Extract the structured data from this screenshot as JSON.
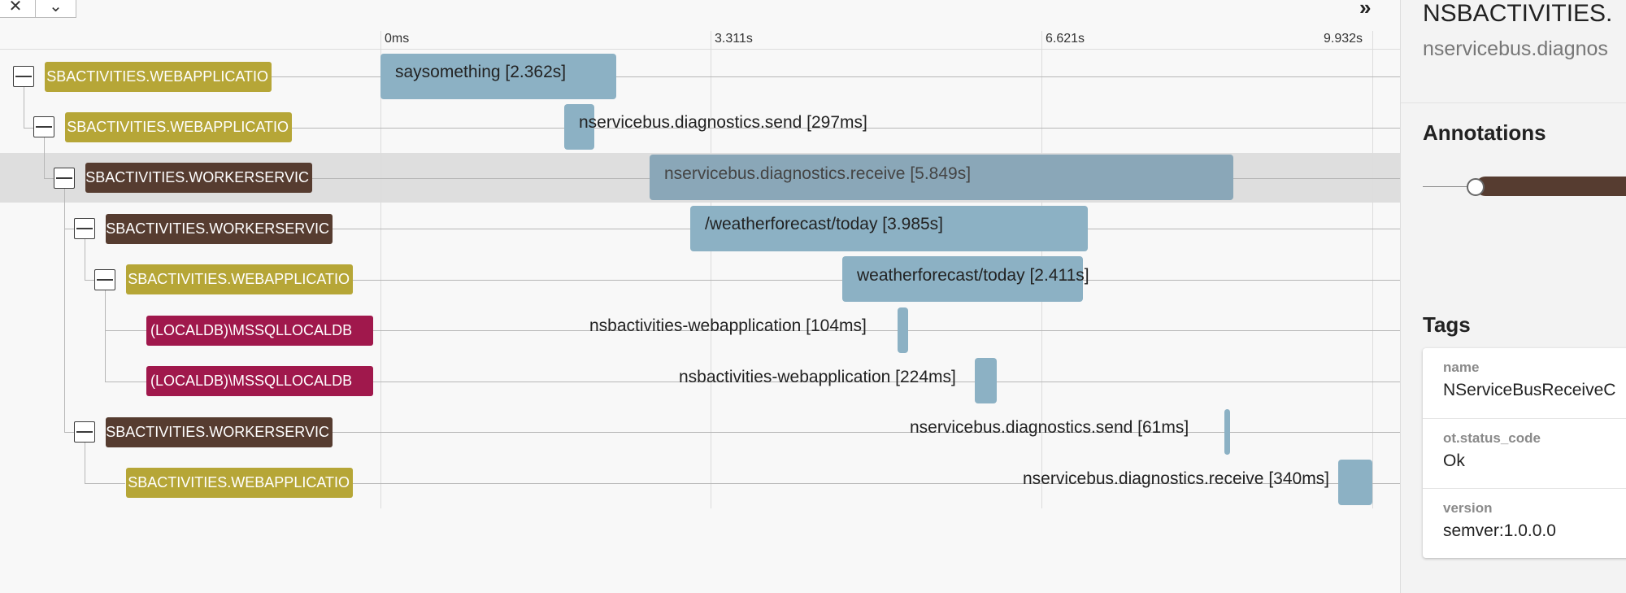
{
  "toolbar": {
    "close_icon": "close-icon",
    "chevron_icon": "chevron-down-icon",
    "close_glyph": "✕",
    "chevron_glyph": "⌄",
    "expand_glyph": "»"
  },
  "timeline": {
    "ticks": [
      "0ms",
      "3.311s",
      "6.621s",
      "9.932s"
    ]
  },
  "rows": [
    {
      "service": "NSBACTIVITIES.WEBAPPLICATION",
      "service_display": "SBACTIVITIES.WEBAPPLICATIO",
      "kind": "webapp",
      "span": "saysomething [2.362s]"
    },
    {
      "service": "NSBACTIVITIES.WEBAPPLICATION",
      "service_display": "SBACTIVITIES.WEBAPPLICATIO",
      "kind": "webapp",
      "span": "nservicebus.diagnostics.send [297ms]"
    },
    {
      "service": "NSBACTIVITIES.WORKERSERVICE",
      "service_display": "SBACTIVITIES.WORKERSERVIC",
      "kind": "worker",
      "span": "nservicebus.diagnostics.receive [5.849s]"
    },
    {
      "service": "NSBACTIVITIES.WORKERSERVICE",
      "service_display": "SBACTIVITIES.WORKERSERVIC",
      "kind": "worker",
      "span": "/weatherforecast/today [3.985s]"
    },
    {
      "service": "NSBACTIVITIES.WEBAPPLICATION",
      "service_display": "SBACTIVITIES.WEBAPPLICATIO",
      "kind": "webapp",
      "span": "weatherforecast/today [2.411s]"
    },
    {
      "service": "(LOCALDB)\\MSSQLLOCALDB",
      "service_display": "(LOCALDB)\\MSSQLLOCALDB",
      "kind": "db",
      "span": "nsbactivities-webapplication [104ms]"
    },
    {
      "service": "(LOCALDB)\\MSSQLLOCALDB",
      "service_display": "(LOCALDB)\\MSSQLLOCALDB",
      "kind": "db",
      "span": "nsbactivities-webapplication [224ms]"
    },
    {
      "service": "NSBACTIVITIES.WORKERSERVICE",
      "service_display": "SBACTIVITIES.WORKERSERVIC",
      "kind": "worker",
      "span": "nservicebus.diagnostics.send [61ms]"
    },
    {
      "service": "NSBACTIVITIES.WEBAPPLICATION",
      "service_display": "SBACTIVITIES.WEBAPPLICATIO",
      "kind": "webapp",
      "span": "nservicebus.diagnostics.receive [340ms]"
    }
  ],
  "detail": {
    "title": "NSBACTIVITIES.",
    "subtitle": "nservicebus.diagnos",
    "annotations_heading": "Annotations",
    "tags_heading": "Tags",
    "tags": [
      {
        "key": "name",
        "value": "NServiceBusReceiveC"
      },
      {
        "key": "ot.status_code",
        "value": "Ok"
      },
      {
        "key": "version",
        "value": "semver:1.0.0.0"
      }
    ]
  },
  "colors": {
    "webapp": "#b6a637",
    "worker": "#563c30",
    "db": "#a0184c",
    "span": "#8cb1c4",
    "selected_row": "#dedede"
  }
}
